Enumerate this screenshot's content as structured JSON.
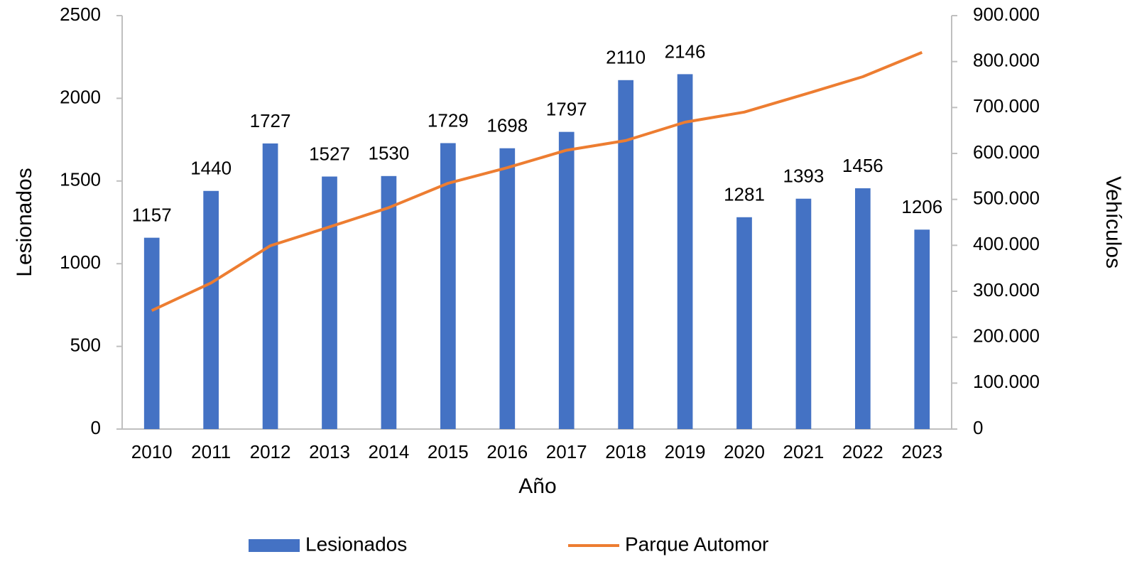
{
  "chart_data": {
    "type": "bar",
    "xlabel": "Año",
    "ylabel": "Lesionados",
    "y2label": "Vehículos",
    "categories": [
      "2010",
      "2011",
      "2012",
      "2013",
      "2014",
      "2015",
      "2016",
      "2017",
      "2018",
      "2019",
      "2020",
      "2021",
      "2022",
      "2023"
    ],
    "series": [
      {
        "name": "Lesionados",
        "type": "bar",
        "color": "#4472c4",
        "values": [
          1157,
          1440,
          1727,
          1527,
          1530,
          1729,
          1698,
          1797,
          2110,
          2146,
          1281,
          1393,
          1456,
          1206
        ]
      },
      {
        "name": "Parque Automor",
        "type": "line",
        "color": "#ed7d31",
        "axis": "y2",
        "values": [
          258000,
          318000,
          399000,
          440000,
          482000,
          535000,
          569000,
          607000,
          628000,
          668000,
          690000,
          728000,
          767000,
          820000
        ]
      }
    ],
    "ylim": [
      0,
      2500
    ],
    "yticks": [
      0,
      500,
      1000,
      1500,
      2000,
      2500
    ],
    "y2lim": [
      0,
      900000
    ],
    "y2ticks": [
      0,
      {
        "value": 100000,
        "label": "100.000"
      },
      {
        "value": 200000,
        "label": "200.000"
      },
      {
        "value": 300000,
        "label": "300.000"
      },
      {
        "value": 400000,
        "label": "400.000"
      },
      {
        "value": 500000,
        "label": "500.000"
      },
      {
        "value": 600000,
        "label": "600.000"
      },
      {
        "value": 700000,
        "label": "700.000"
      },
      {
        "value": 800000,
        "label": "800.000"
      },
      {
        "value": 900000,
        "label": "900.000"
      }
    ],
    "legend": "bottom",
    "grid": false
  }
}
